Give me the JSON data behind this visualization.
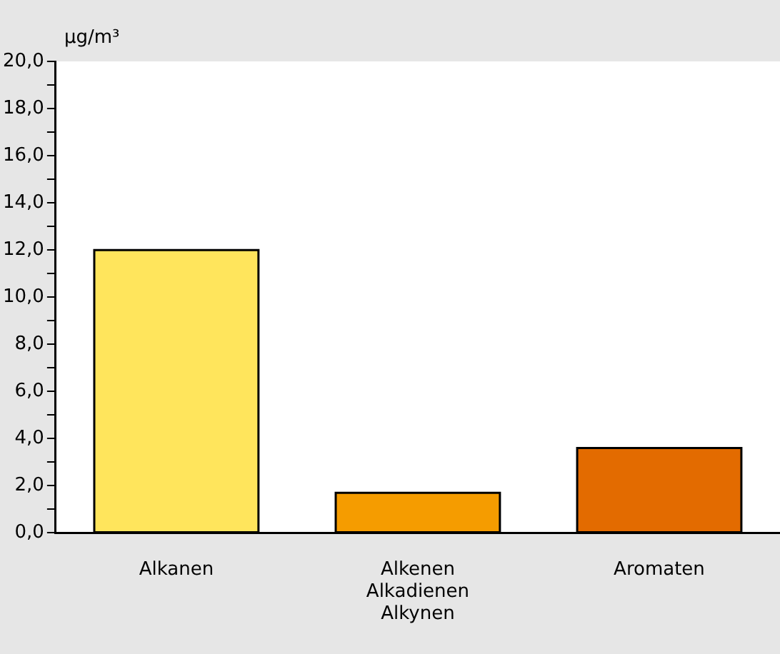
{
  "chart_data": {
    "type": "bar",
    "ylabel": "µg/m³",
    "categories": [
      "Alkanen",
      "Alkenen\nAlkadienen\nAlkynen",
      "Aromaten"
    ],
    "values": [
      12.0,
      1.7,
      3.6
    ],
    "colors": [
      "#ffe55c",
      "#f59c00",
      "#e36b00"
    ],
    "ylim": [
      0,
      20
    ],
    "yticks": [
      {
        "value": 0,
        "label": "0,0"
      },
      {
        "value": 1,
        "label": null
      },
      {
        "value": 2,
        "label": "2,0"
      },
      {
        "value": 3,
        "label": null
      },
      {
        "value": 4,
        "label": "4,0"
      },
      {
        "value": 5,
        "label": null
      },
      {
        "value": 6,
        "label": "6,0"
      },
      {
        "value": 7,
        "label": null
      },
      {
        "value": 8,
        "label": "8,0"
      },
      {
        "value": 9,
        "label": null
      },
      {
        "value": 10,
        "label": "10,0"
      },
      {
        "value": 11,
        "label": null
      },
      {
        "value": 12,
        "label": "12,0"
      },
      {
        "value": 13,
        "label": null
      },
      {
        "value": 14,
        "label": "14,0"
      },
      {
        "value": 15,
        "label": null
      },
      {
        "value": 16,
        "label": "16,0"
      },
      {
        "value": 17,
        "label": null
      },
      {
        "value": 18,
        "label": "18,0"
      },
      {
        "value": 19,
        "label": null
      },
      {
        "value": 20,
        "label": "20,0"
      }
    ],
    "grid": false,
    "legend": false
  }
}
